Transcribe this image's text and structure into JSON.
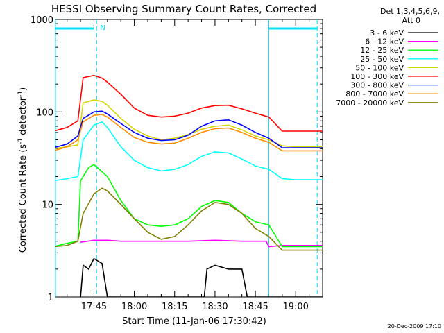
{
  "chart_data": {
    "type": "line",
    "title": "HESSI Observing Summary Count Rates, Corrected",
    "xlabel": "Start Time (11-Jan-06 17:30:42)",
    "ylabel": "Corrected Count Rate (s⁻¹ detector⁻¹)",
    "ylabel_parts": [
      "Corrected Count Rate (s",
      "-1",
      " detector",
      "-1",
      ")"
    ],
    "y_scale": "log",
    "ylim": [
      1,
      1000
    ],
    "xlim": [
      "17:30:42",
      "19:10:00"
    ],
    "x_ticks": [
      "17:45",
      "18:00",
      "18:15",
      "18:30",
      "18:45",
      "19:00"
    ],
    "y_tick_labels": [
      {
        "value": 1,
        "label": "1"
      },
      {
        "value": 10,
        "label": "10"
      },
      {
        "value": 100,
        "label": "100"
      },
      {
        "value": 1000,
        "label": "1000"
      }
    ],
    "legend_position": "top-right, outside plot",
    "legend_header": [
      "Det 1,3,4,5,6,9,",
      "Att 0"
    ],
    "date_stamp": "20-Dec-2009 17:10",
    "markers": {
      "flag_label": "N",
      "flag_line_color": "#00e0ff",
      "flag_segments": [
        [
          "17:30:42",
          "17:45"
        ],
        [
          "18:50",
          "19:08"
        ]
      ],
      "vertical_solid_times": [
        "17:30:42",
        "18:50"
      ],
      "vertical_dashed_times": [
        "17:46",
        "19:08"
      ]
    },
    "series": [
      {
        "name": "3 - 6 keV",
        "color": "#000000",
        "points": [
          [
            "17:40",
            1
          ],
          [
            "17:41",
            2.2
          ],
          [
            "17:43",
            2.0
          ],
          [
            "17:45",
            2.6
          ],
          [
            "17:48",
            2.3
          ],
          [
            "17:50",
            1.0
          ],
          [
            "17:55",
            1.0
          ],
          [
            "18:26",
            1.0
          ],
          [
            "18:27",
            2.0
          ],
          [
            "18:30",
            2.2
          ],
          [
            "18:35",
            2.0
          ],
          [
            "18:40",
            2.0
          ],
          [
            "18:42",
            1.0
          ],
          [
            "19:10",
            1.0
          ]
        ]
      },
      {
        "name": "6 - 12 keV",
        "color": "#ff00ff",
        "points": [
          [
            "17:40",
            3.9
          ],
          [
            "17:45",
            4.1
          ],
          [
            "17:50",
            4.1
          ],
          [
            "17:55",
            4.0
          ],
          [
            "18:00",
            4.0
          ],
          [
            "18:10",
            4.0
          ],
          [
            "18:20",
            4.0
          ],
          [
            "18:30",
            4.1
          ],
          [
            "18:40",
            4.0
          ],
          [
            "18:49",
            4.0
          ],
          [
            "18:50",
            3.5
          ],
          [
            "18:55",
            3.6
          ],
          [
            "19:00",
            3.6
          ],
          [
            "19:10",
            3.6
          ]
        ]
      },
      {
        "name": "12 - 25 keV",
        "color": "#00ff00",
        "points": [
          [
            "17:30",
            3.5
          ],
          [
            "17:35",
            3.8
          ],
          [
            "17:39",
            4.0
          ],
          [
            "17:40",
            18
          ],
          [
            "17:43",
            25
          ],
          [
            "17:45",
            27
          ],
          [
            "17:50",
            20
          ],
          [
            "17:55",
            11
          ],
          [
            "18:00",
            7.0
          ],
          [
            "18:05",
            6.0
          ],
          [
            "18:10",
            5.8
          ],
          [
            "18:15",
            6.0
          ],
          [
            "18:20",
            7.0
          ],
          [
            "18:25",
            9.5
          ],
          [
            "18:30",
            11
          ],
          [
            "18:35",
            10.5
          ],
          [
            "18:40",
            8.0
          ],
          [
            "18:45",
            6.5
          ],
          [
            "18:50",
            6.0
          ],
          [
            "18:55",
            3.5
          ],
          [
            "19:00",
            3.5
          ],
          [
            "19:10",
            3.5
          ]
        ]
      },
      {
        "name": "25 - 50 keV",
        "color": "#00ffff",
        "points": [
          [
            "17:30",
            18
          ],
          [
            "17:35",
            19
          ],
          [
            "17:39",
            20
          ],
          [
            "17:41",
            50
          ],
          [
            "17:45",
            72
          ],
          [
            "17:48",
            78
          ],
          [
            "17:50",
            68
          ],
          [
            "17:55",
            42
          ],
          [
            "18:00",
            30
          ],
          [
            "18:05",
            25
          ],
          [
            "18:10",
            23
          ],
          [
            "18:15",
            24
          ],
          [
            "18:20",
            27
          ],
          [
            "18:25",
            33
          ],
          [
            "18:30",
            37
          ],
          [
            "18:35",
            36
          ],
          [
            "18:40",
            31
          ],
          [
            "18:45",
            26
          ],
          [
            "18:50",
            24
          ],
          [
            "18:55",
            19
          ],
          [
            "19:00",
            18.5
          ],
          [
            "19:10",
            18.5
          ]
        ]
      },
      {
        "name": "50 - 100 keV",
        "color": "#d4d400",
        "points": [
          [
            "17:30",
            40
          ],
          [
            "17:35",
            42
          ],
          [
            "17:39",
            44
          ],
          [
            "17:41",
            125
          ],
          [
            "17:45",
            135
          ],
          [
            "17:48",
            130
          ],
          [
            "17:50",
            118
          ],
          [
            "17:55",
            85
          ],
          [
            "18:00",
            65
          ],
          [
            "18:05",
            55
          ],
          [
            "18:10",
            50
          ],
          [
            "18:15",
            52
          ],
          [
            "18:20",
            57
          ],
          [
            "18:25",
            65
          ],
          [
            "18:30",
            70
          ],
          [
            "18:35",
            72
          ],
          [
            "18:40",
            64
          ],
          [
            "18:45",
            55
          ],
          [
            "18:50",
            50
          ],
          [
            "18:55",
            43
          ],
          [
            "19:00",
            42
          ],
          [
            "19:10",
            42
          ]
        ]
      },
      {
        "name": "100 - 300 keV",
        "color": "#ff0000",
        "points": [
          [
            "17:30",
            62
          ],
          [
            "17:35",
            68
          ],
          [
            "17:39",
            80
          ],
          [
            "17:41",
            235
          ],
          [
            "17:45",
            248
          ],
          [
            "17:48",
            232
          ],
          [
            "17:50",
            210
          ],
          [
            "17:55",
            155
          ],
          [
            "18:00",
            110
          ],
          [
            "18:05",
            92
          ],
          [
            "18:10",
            88
          ],
          [
            "18:15",
            90
          ],
          [
            "18:20",
            97
          ],
          [
            "18:25",
            110
          ],
          [
            "18:30",
            117
          ],
          [
            "18:35",
            118
          ],
          [
            "18:40",
            108
          ],
          [
            "18:45",
            97
          ],
          [
            "18:50",
            88
          ],
          [
            "18:55",
            62
          ],
          [
            "19:00",
            62
          ],
          [
            "19:10",
            62
          ]
        ]
      },
      {
        "name": "300 - 800 keV",
        "color": "#0000ff",
        "points": [
          [
            "17:30",
            41
          ],
          [
            "17:35",
            45
          ],
          [
            "17:39",
            55
          ],
          [
            "17:41",
            85
          ],
          [
            "17:45",
            100
          ],
          [
            "17:48",
            102
          ],
          [
            "17:50",
            95
          ],
          [
            "17:55",
            75
          ],
          [
            "18:00",
            60
          ],
          [
            "18:05",
            52
          ],
          [
            "18:10",
            49
          ],
          [
            "18:15",
            50
          ],
          [
            "18:20",
            56
          ],
          [
            "18:25",
            70
          ],
          [
            "18:30",
            80
          ],
          [
            "18:35",
            82
          ],
          [
            "18:40",
            72
          ],
          [
            "18:45",
            60
          ],
          [
            "18:50",
            52
          ],
          [
            "18:55",
            41
          ],
          [
            "19:00",
            41
          ],
          [
            "19:10",
            41
          ]
        ]
      },
      {
        "name": "800 - 7000 keV",
        "color": "#ff8c00",
        "points": [
          [
            "17:30",
            38
          ],
          [
            "17:35",
            42
          ],
          [
            "17:39",
            50
          ],
          [
            "17:41",
            78
          ],
          [
            "17:45",
            92
          ],
          [
            "17:48",
            94
          ],
          [
            "17:50",
            88
          ],
          [
            "17:55",
            68
          ],
          [
            "18:00",
            53
          ],
          [
            "18:05",
            47
          ],
          [
            "18:10",
            45
          ],
          [
            "18:15",
            46
          ],
          [
            "18:20",
            52
          ],
          [
            "18:25",
            60
          ],
          [
            "18:30",
            66
          ],
          [
            "18:35",
            67
          ],
          [
            "18:40",
            60
          ],
          [
            "18:45",
            52
          ],
          [
            "18:50",
            47
          ],
          [
            "18:55",
            38
          ],
          [
            "19:00",
            38
          ],
          [
            "19:10",
            38
          ]
        ]
      },
      {
        "name": "7000 - 20000 keV",
        "color": "#808000",
        "points": [
          [
            "17:30",
            3.5
          ],
          [
            "17:35",
            3.6
          ],
          [
            "17:39",
            4.0
          ],
          [
            "17:41",
            8
          ],
          [
            "17:45",
            13
          ],
          [
            "17:48",
            15
          ],
          [
            "17:50",
            14
          ],
          [
            "17:55",
            10
          ],
          [
            "18:00",
            7
          ],
          [
            "18:05",
            5
          ],
          [
            "18:10",
            4.2
          ],
          [
            "18:15",
            4.5
          ],
          [
            "18:20",
            6
          ],
          [
            "18:25",
            8.5
          ],
          [
            "18:30",
            10.5
          ],
          [
            "18:35",
            10
          ],
          [
            "18:40",
            8
          ],
          [
            "18:45",
            5.5
          ],
          [
            "18:50",
            4.5
          ],
          [
            "18:55",
            3.2
          ],
          [
            "19:00",
            3.2
          ],
          [
            "19:10",
            3.2
          ]
        ]
      }
    ]
  }
}
